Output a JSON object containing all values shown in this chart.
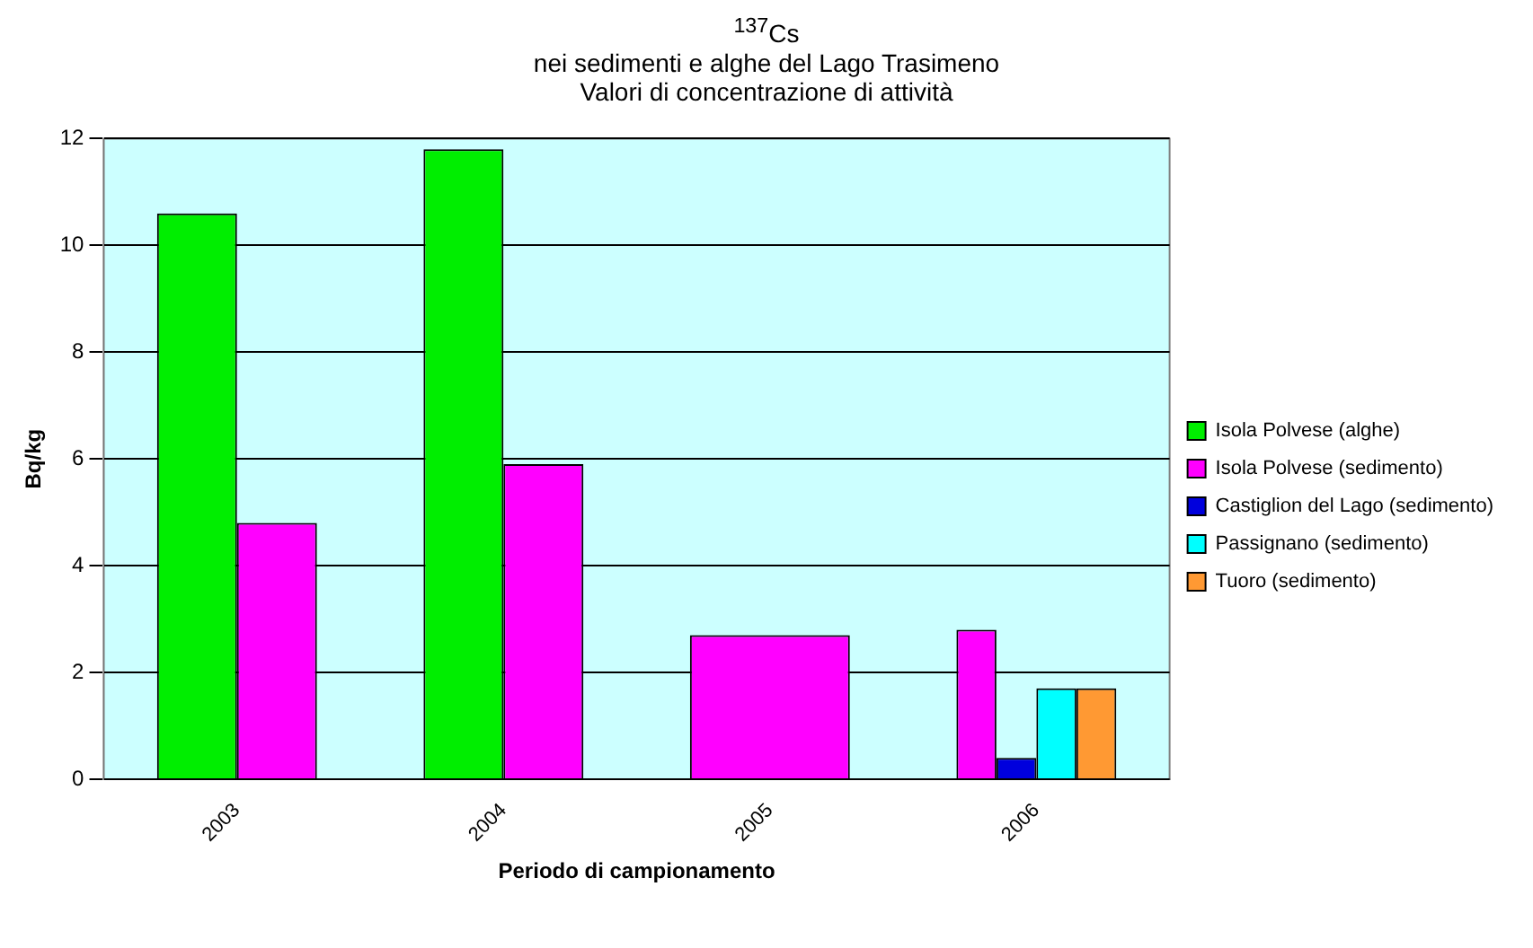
{
  "chart_data": {
    "type": "bar",
    "title": "$^{137}$Cs",
    "subtitle": "nei sedimenti e alghe del Lago Trasimeno\nValori di concentrazione di attività",
    "xlabel": "Periodo di campionamento",
    "ylabel": "Bq/kg",
    "categories": [
      "2003",
      "2004",
      "2005",
      "2006"
    ],
    "series": [
      {
        "name": "Isola Polvese (alghe)",
        "color": "#00ee00",
        "values": [
          10.6,
          11.8,
          null,
          null
        ]
      },
      {
        "name": "Isola Polvese (sedimento)",
        "color": "#ff00ff",
        "values": [
          4.8,
          5.9,
          2.7,
          2.8
        ]
      },
      {
        "name": "Castiglion del Lago (sedimento)",
        "color": "#0000dd",
        "values": [
          null,
          null,
          null,
          0.4
        ]
      },
      {
        "name": "Passignano (sedimento)",
        "color": "#00ffff",
        "values": [
          null,
          null,
          null,
          1.7
        ]
      },
      {
        "name": "Tuoro (sedimento)",
        "color": "#ff9933",
        "values": [
          null,
          null,
          null,
          1.7
        ]
      }
    ],
    "ylim": [
      0,
      12
    ],
    "yticks": [
      0,
      2,
      4,
      6,
      8,
      10,
      12
    ],
    "grid": "y",
    "legend": "right"
  }
}
